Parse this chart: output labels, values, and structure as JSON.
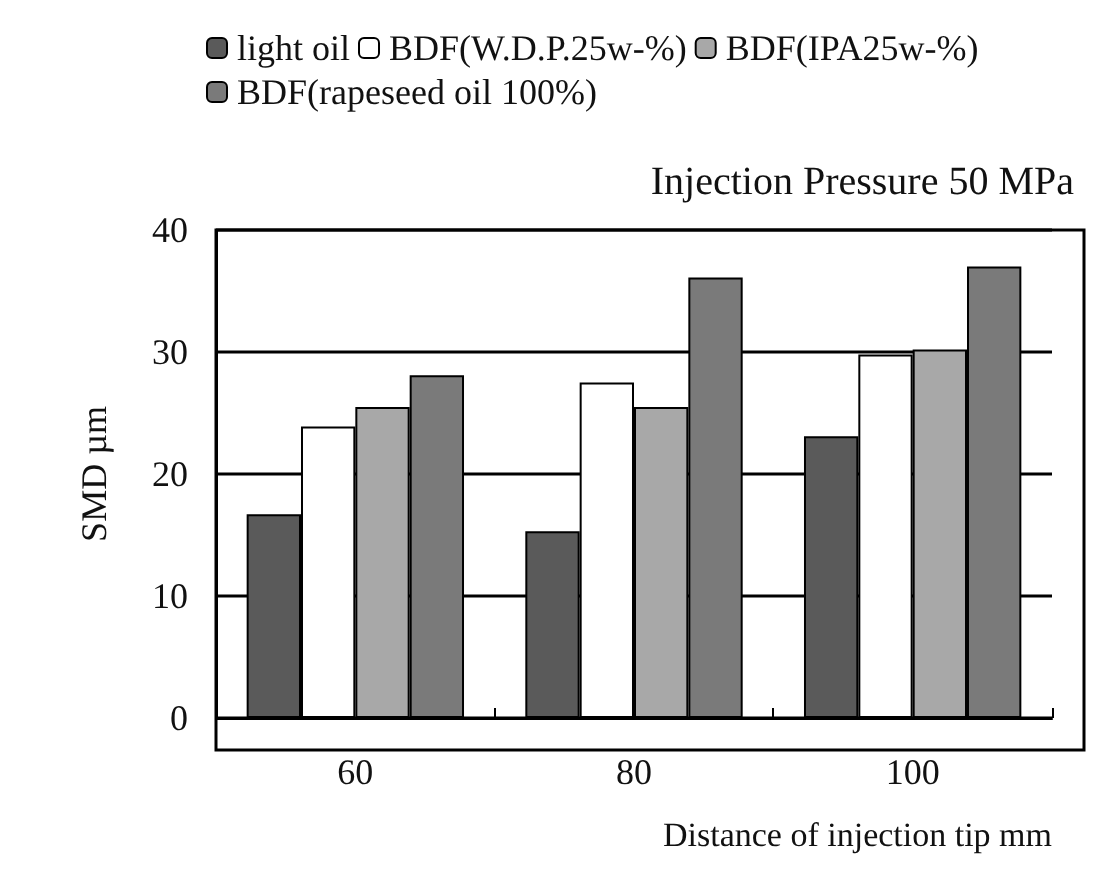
{
  "chart_data": {
    "type": "bar",
    "title": "Injection Pressure 50 MPa",
    "xlabel": "Distance of injection tip mm",
    "ylabel": "SMD µm",
    "categories": [
      "60",
      "80",
      "100"
    ],
    "series": [
      {
        "name": "light oil",
        "color": "#5a5a5a",
        "values": [
          16.7,
          15.3,
          23.1
        ]
      },
      {
        "name": "BDF(W.D.P.25w-%)",
        "color": "#ffffff",
        "values": [
          23.9,
          27.5,
          29.8
        ]
      },
      {
        "name": "BDF(IPA25w-%)",
        "color": "#a8a8a8",
        "values": [
          25.5,
          25.5,
          30.2
        ]
      },
      {
        "name": "BDF(rapeseed oil 100%)",
        "color": "#7a7a7a",
        "values": [
          28.1,
          36.1,
          37.0
        ]
      }
    ],
    "ylim": [
      0,
      40
    ],
    "yticks": [
      0,
      10,
      20,
      30,
      40
    ],
    "grid": "y",
    "legend": "top"
  }
}
